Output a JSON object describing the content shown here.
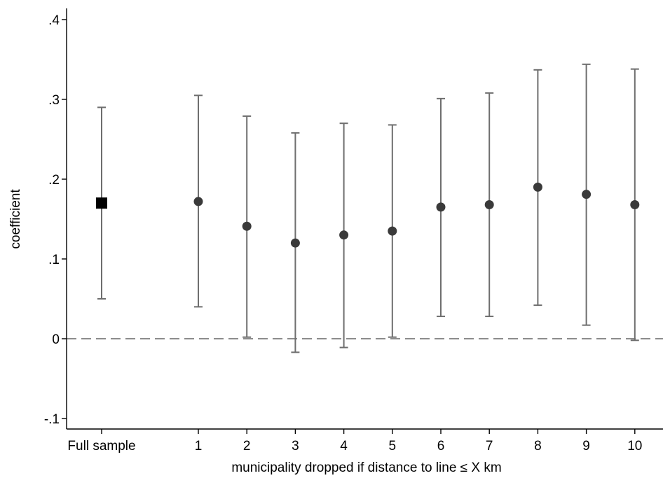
{
  "chart_data": {
    "type": "scatter",
    "title": "",
    "xlabel": "municipality dropped if distance to line ≤ X km",
    "ylabel": "coefficient",
    "ylim": [
      -0.12,
      0.42
    ],
    "yticks": [
      {
        "value": -0.1,
        "label": "-.1"
      },
      {
        "value": 0.0,
        "label": "0"
      },
      {
        "value": 0.1,
        "label": ".1"
      },
      {
        "value": 0.2,
        "label": ".2"
      },
      {
        "value": 0.3,
        "label": ".3"
      },
      {
        "value": 0.4,
        "label": ".4"
      }
    ],
    "categories": [
      "Full sample",
      "1",
      "2",
      "3",
      "4",
      "5",
      "6",
      "7",
      "8",
      "9",
      "10"
    ],
    "points": [
      {
        "category": "Full sample",
        "estimate": 0.17,
        "ci_low": 0.05,
        "ci_high": 0.29,
        "marker": "square"
      },
      {
        "category": "1",
        "estimate": 0.172,
        "ci_low": 0.04,
        "ci_high": 0.305,
        "marker": "circle"
      },
      {
        "category": "2",
        "estimate": 0.141,
        "ci_low": 0.002,
        "ci_high": 0.279,
        "marker": "circle"
      },
      {
        "category": "3",
        "estimate": 0.12,
        "ci_low": -0.017,
        "ci_high": 0.258,
        "marker": "circle"
      },
      {
        "category": "4",
        "estimate": 0.13,
        "ci_low": -0.011,
        "ci_high": 0.27,
        "marker": "circle"
      },
      {
        "category": "5",
        "estimate": 0.135,
        "ci_low": 0.002,
        "ci_high": 0.268,
        "marker": "circle"
      },
      {
        "category": "6",
        "estimate": 0.165,
        "ci_low": 0.028,
        "ci_high": 0.301,
        "marker": "circle"
      },
      {
        "category": "7",
        "estimate": 0.168,
        "ci_low": 0.028,
        "ci_high": 0.308,
        "marker": "circle"
      },
      {
        "category": "8",
        "estimate": 0.19,
        "ci_low": 0.042,
        "ci_high": 0.337,
        "marker": "circle"
      },
      {
        "category": "9",
        "estimate": 0.181,
        "ci_low": 0.017,
        "ci_high": 0.344,
        "marker": "circle"
      },
      {
        "category": "10",
        "estimate": 0.168,
        "ci_low": -0.002,
        "ci_high": 0.338,
        "marker": "circle"
      }
    ],
    "reference_line": {
      "y": 0,
      "style": "dashed"
    },
    "grid": false,
    "colors": {
      "marker": "#3a3a3a",
      "full_sample_marker": "#000000",
      "ci_line": "#6e6e6e",
      "reference_line": "#8c8c8c",
      "axis": "#000000"
    }
  }
}
